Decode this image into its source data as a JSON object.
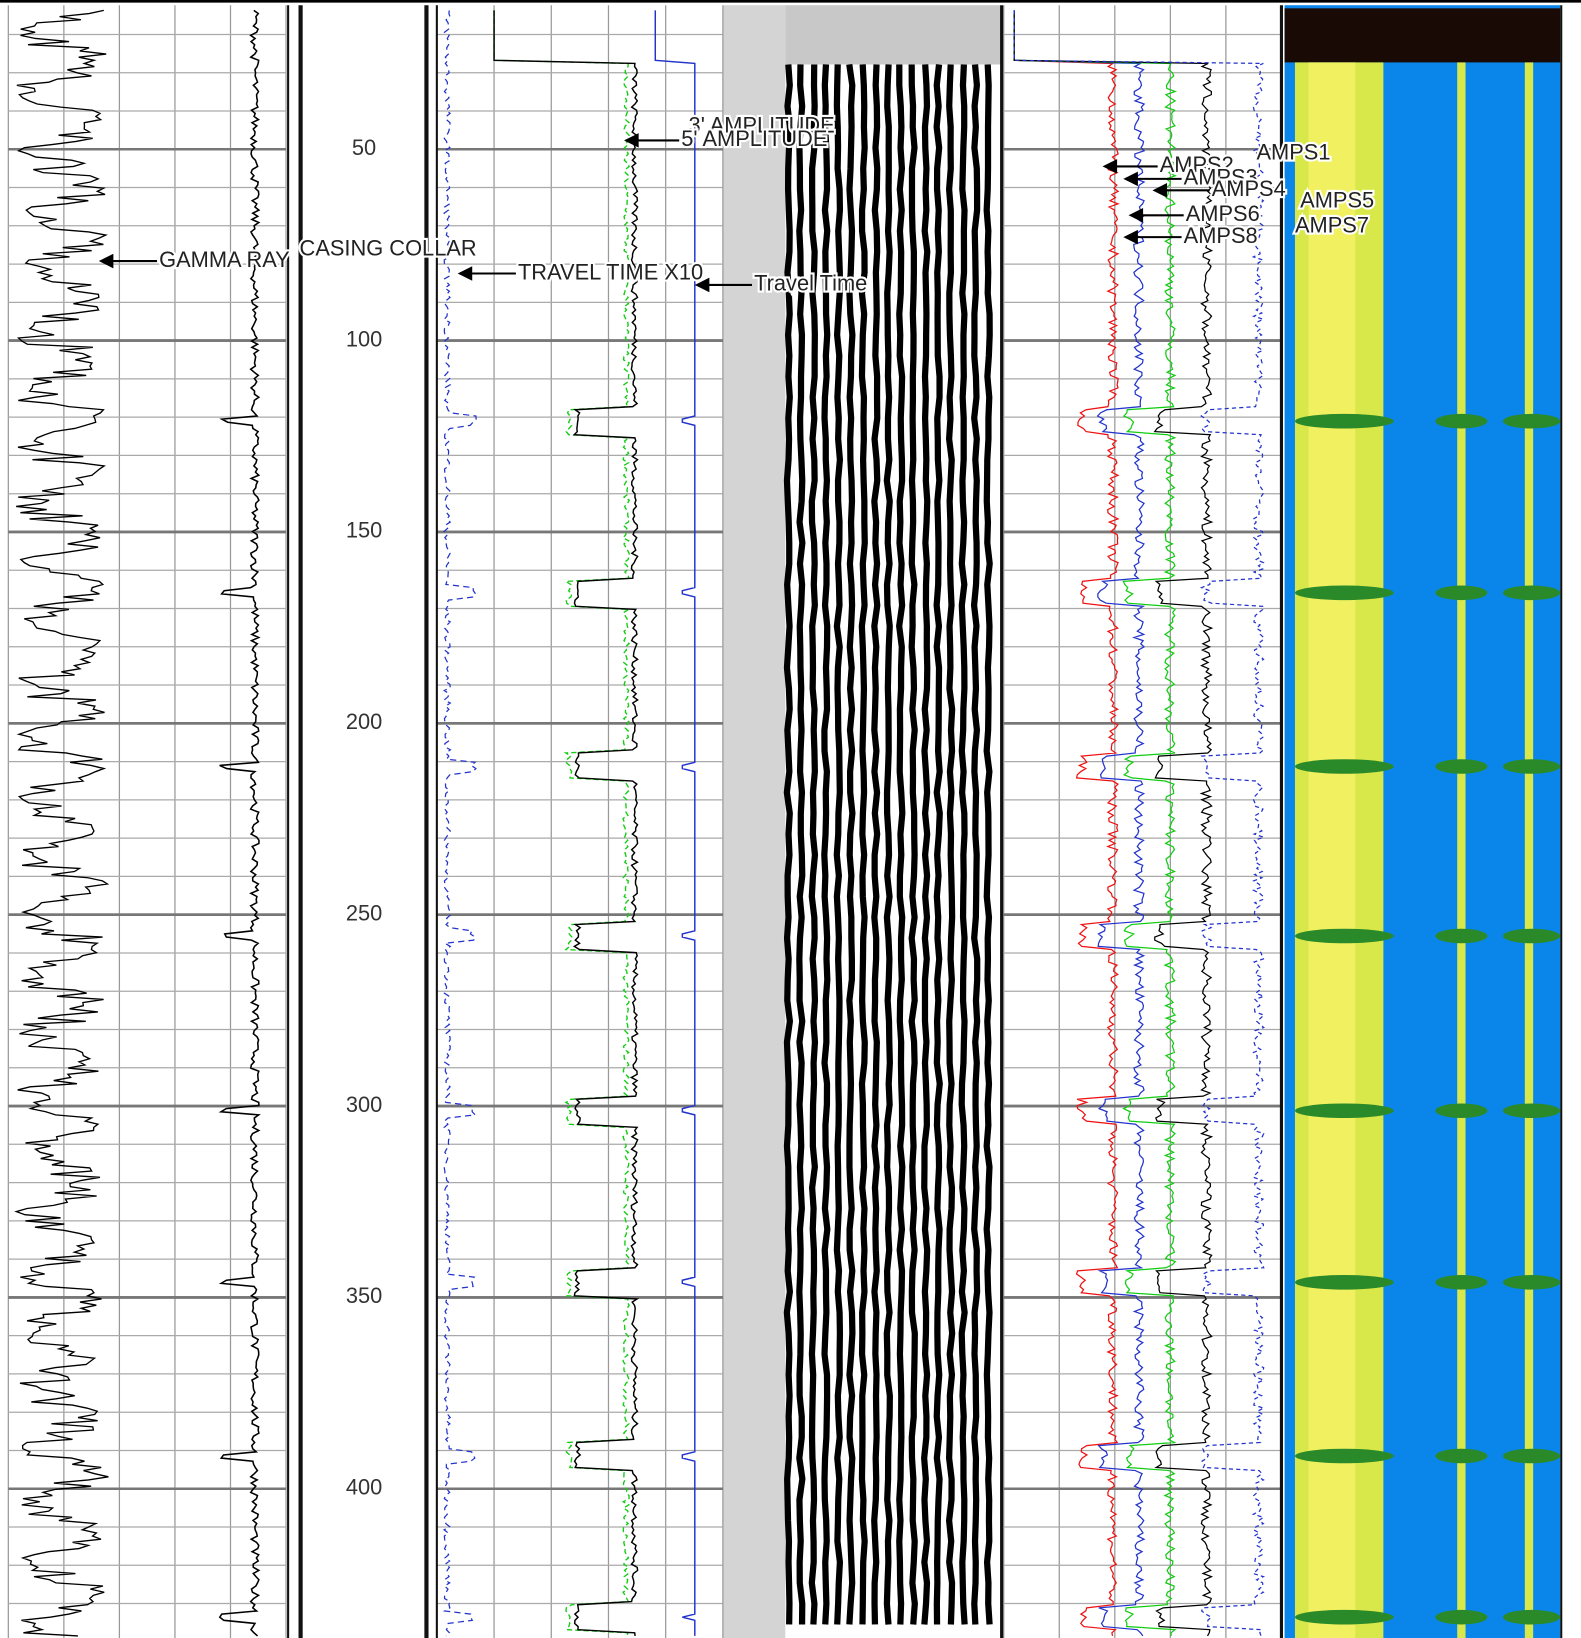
{
  "depth_track": {
    "ylim": [
      11,
      439
    ],
    "ticks": [
      50,
      100,
      150,
      200,
      250,
      300,
      350,
      400
    ]
  },
  "labels": {
    "gamma_ray": "GAMMA RAY",
    "casing_collar": "CASING COLLAR",
    "travel_time_x10": "TRAVEL TIME X10",
    "travel_time": "Travel Time",
    "amp3": "3' AMPLITUDE",
    "amp5": "5' AMPLITUDE",
    "amps1": "AMPS1",
    "amps2": "AMPS2",
    "amps3": "AMPS3",
    "amps4": "AMPS4",
    "amps5": "AMPS5",
    "amps6": "AMPS6",
    "amps7": "AMPS7",
    "amps8": "AMPS8"
  }
}
